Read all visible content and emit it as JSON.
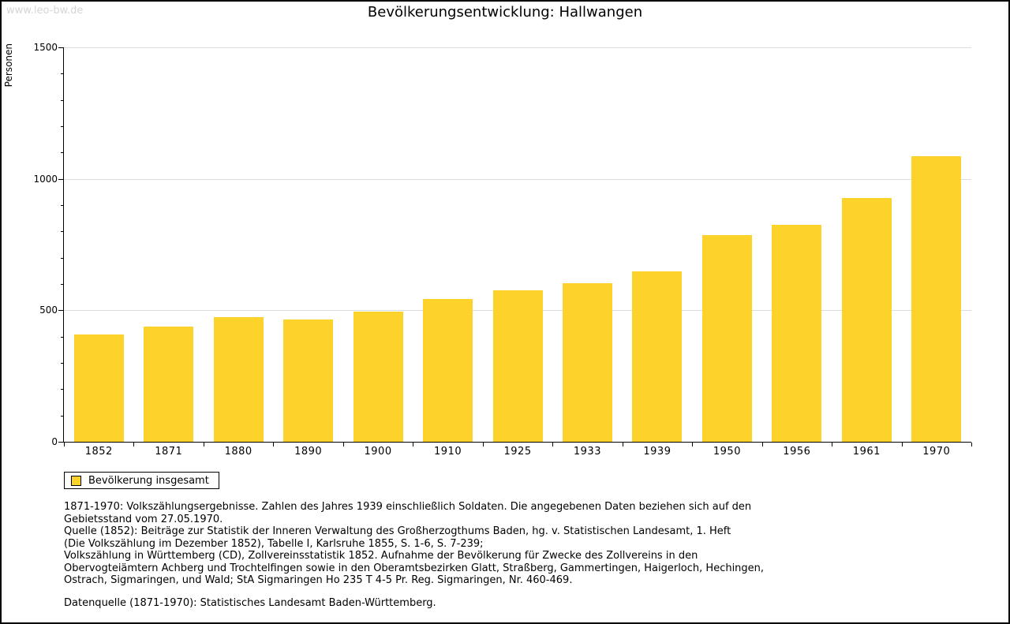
{
  "watermark": "www.leo-bw.de",
  "colors": {
    "bar": "#FDD32B",
    "grid": "#DCDCDC",
    "axis": "#000000",
    "watermark_text": "#D6D6D6",
    "text": "#000000"
  },
  "chart_data": {
    "type": "bar",
    "title": "Bevölkerungsentwicklung: Hallwangen",
    "xlabel": "",
    "ylabel": "Personen",
    "ylim": [
      0,
      1500
    ],
    "y_ticks": [
      0,
      500,
      1000,
      1500
    ],
    "y_minor_tick_step": 100,
    "grid": "horizontal light-gray lines at 500, 1000, 1500",
    "legend_position": "bottom-left",
    "categories": [
      "1852",
      "1871",
      "1880",
      "1890",
      "1900",
      "1910",
      "1925",
      "1933",
      "1939",
      "1950",
      "1956",
      "1961",
      "1970"
    ],
    "series": [
      {
        "name": "Bevölkerung insgesamt",
        "color": "#FDD32B",
        "values": [
          407,
          437,
          474,
          464,
          494,
          542,
          576,
          604,
          647,
          785,
          826,
          926,
          1087
        ]
      }
    ]
  },
  "legend": {
    "label": "Bevölkerung insgesamt"
  },
  "footnote": {
    "lines": [
      "1871-1970: Volkszählungsergebnisse. Zahlen des Jahres 1939 einschließlich Soldaten. Die angegebenen Daten beziehen sich auf den",
      "Gebietsstand vom 27.05.1970.",
      "Quelle (1852): Beiträge zur Statistik der Inneren Verwaltung des Großherzogthums Baden, hg. v. Statistischen Landesamt, 1. Heft",
      "(Die Volkszählung im Dezember 1852), Tabelle I, Karlsruhe 1855, S. 1-6, S. 7-239;",
      "Volkszählung in Württemberg (CD), Zollvereinsstatistik 1852. Aufnahme der Bevölkerung für Zwecke des Zollvereins in den",
      "Obervogteiämtern Achberg und Trochtelfingen sowie in den Oberamtsbezirken Glatt, Straßberg, Gammertingen, Haigerloch, Hechingen,",
      "Ostrach, Sigmaringen, und Wald; StA Sigmaringen Ho 235 T 4-5 Pr. Reg. Sigmaringen, Nr. 460-469."
    ],
    "datasource": "Datenquelle (1871-1970): Statistisches Landesamt Baden-Württemberg."
  }
}
